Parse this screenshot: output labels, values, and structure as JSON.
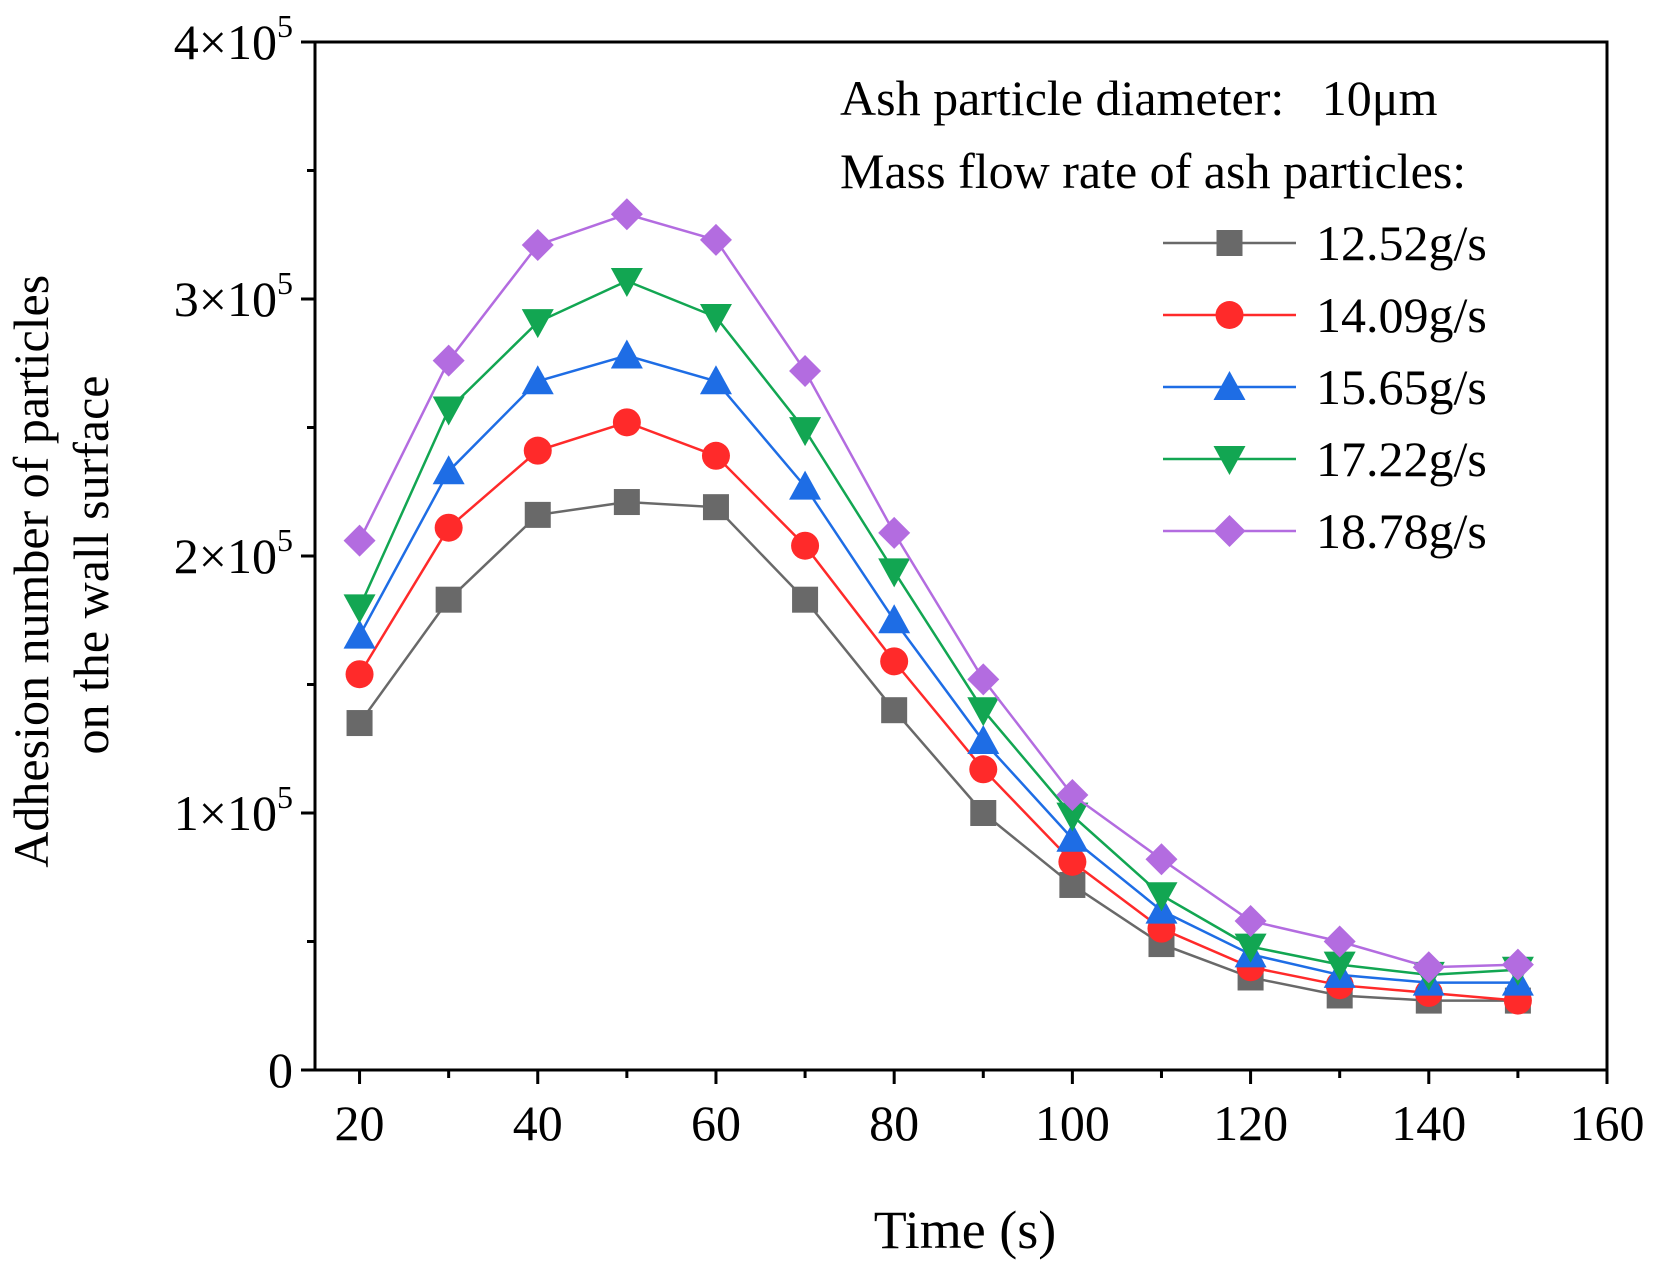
{
  "chart_data": {
    "type": "line",
    "xlabel": "Time (s)",
    "ylabel_lines": [
      "Adhesion number of particles",
      "on the wall surface"
    ],
    "xlim": [
      15,
      160
    ],
    "ylim": [
      0,
      400000
    ],
    "xticks": [
      20,
      40,
      60,
      80,
      100,
      120,
      140,
      160
    ],
    "xtick_labels": [
      "20",
      "40",
      "60",
      "80",
      "100",
      "120",
      "140",
      "160"
    ],
    "yticks": [
      0,
      100000,
      200000,
      300000,
      400000
    ],
    "ytick_labels": [
      {
        "mant": "0",
        "exp": ""
      },
      {
        "mant": "1×10",
        "exp": "5"
      },
      {
        "mant": "2×10",
        "exp": "5"
      },
      {
        "mant": "3×10",
        "exp": "5"
      },
      {
        "mant": "4×10",
        "exp": "5"
      }
    ],
    "annotation_lines": [
      "Ash particle diameter:   10μm",
      "Mass flow rate of ash particles:"
    ],
    "legend_position": "top-right",
    "x": [
      20,
      30,
      40,
      50,
      60,
      70,
      80,
      90,
      100,
      110,
      120,
      130,
      140,
      150
    ],
    "series": [
      {
        "name": "12.52g/s",
        "color": "#696969",
        "marker": "square",
        "values": [
          135000,
          183000,
          216000,
          221000,
          219000,
          183000,
          140000,
          100000,
          72000,
          49000,
          36000,
          29000,
          27000,
          27000
        ]
      },
      {
        "name": "14.09g/s",
        "color": "#ff2a2a",
        "marker": "circle",
        "values": [
          154000,
          211000,
          241000,
          252000,
          239000,
          204000,
          159000,
          117000,
          81000,
          55000,
          40000,
          33000,
          30000,
          27000
        ]
      },
      {
        "name": "15.65g/s",
        "color": "#1e6de5",
        "marker": "triangle-up",
        "values": [
          169000,
          233000,
          268000,
          278000,
          268000,
          227000,
          175000,
          128000,
          90000,
          62000,
          45000,
          37000,
          34000,
          34000
        ]
      },
      {
        "name": "17.22g/s",
        "color": "#12a652",
        "marker": "triangle-down",
        "values": [
          180000,
          257000,
          291000,
          307000,
          293000,
          249000,
          194000,
          140000,
          99000,
          68000,
          48000,
          41000,
          37000,
          39000
        ]
      },
      {
        "name": "18.78g/s",
        "color": "#b36ce0",
        "marker": "diamond",
        "values": [
          206000,
          276000,
          321000,
          333000,
          323000,
          272000,
          209000,
          152000,
          107000,
          82000,
          58000,
          50000,
          40000,
          41000
        ]
      }
    ]
  }
}
